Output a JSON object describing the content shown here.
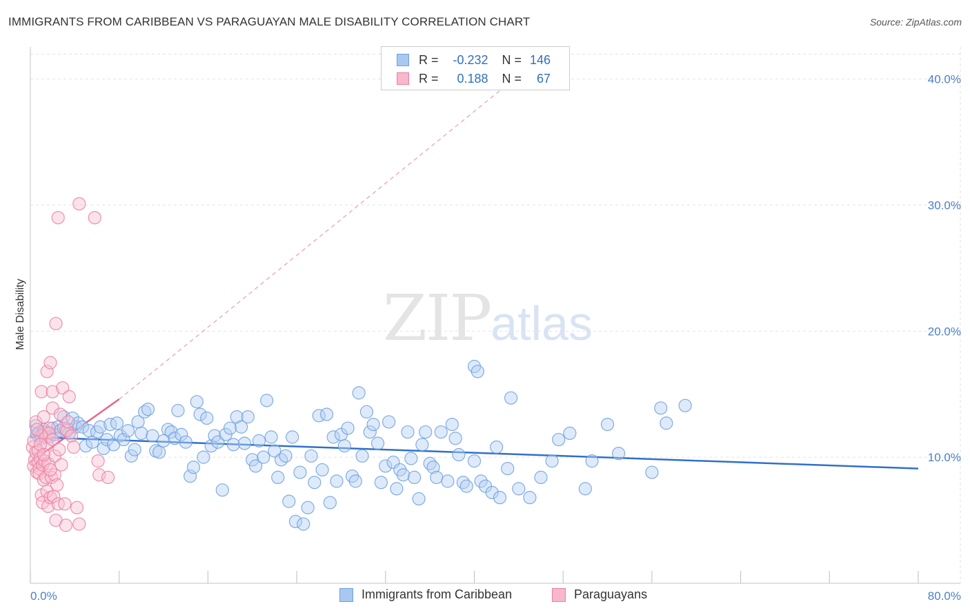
{
  "header": {
    "title": "IMMIGRANTS FROM CARIBBEAN VS PARAGUAYAN MALE DISABILITY CORRELATION CHART",
    "source": "Source: ZipAtlas.com"
  },
  "watermark": {
    "zip": "ZIP",
    "atlas": "atlas"
  },
  "legend": {
    "rows": [
      {
        "r_label": "R =",
        "r_value": "-0.232",
        "n_label": "N =",
        "n_value": "146",
        "color": "#a9c8ef",
        "border": "#6a9fe0"
      },
      {
        "r_label": "R =",
        "r_value": "0.188",
        "n_label": "N =",
        "n_value": "67",
        "color": "#f7b8cc",
        "border": "#ec7ea0"
      }
    ]
  },
  "bottom_legend": {
    "series1": "Immigrants from Caribbean",
    "series2": "Paraguayans"
  },
  "chart_data": {
    "type": "scatter",
    "title": "IMMIGRANTS FROM CARIBBEAN VS PARAGUAYAN MALE DISABILITY CORRELATION CHART",
    "xlabel": "",
    "ylabel": "Male Disability",
    "xlim": [
      0,
      80
    ],
    "ylim": [
      0,
      42
    ],
    "x_tick_labels": [
      "0.0%",
      "80.0%"
    ],
    "y_ticks": [
      10,
      20,
      30,
      40
    ],
    "y_tick_labels": [
      "10.0%",
      "20.0%",
      "30.0%",
      "40.0%"
    ],
    "series": [
      {
        "name": "Immigrants from Caribbean",
        "color": "#6a9fe0",
        "fill": "#b5d0f2",
        "trend": {
          "x": [
            0,
            80
          ],
          "y": [
            11.6,
            9.1
          ],
          "style": "solid",
          "color": "#2f6fcc"
        },
        "points": [
          [
            0.5,
            12.5
          ],
          [
            0.6,
            11.8
          ],
          [
            0.8,
            12.0
          ],
          [
            1.0,
            11.5
          ],
          [
            1.2,
            12.2
          ],
          [
            1.4,
            11.9
          ],
          [
            1.7,
            11.6
          ],
          [
            2.0,
            12.3
          ],
          [
            2.2,
            11.8
          ],
          [
            2.5,
            12.4
          ],
          [
            2.7,
            12.1
          ],
          [
            3.0,
            13.2
          ],
          [
            3.2,
            12.2
          ],
          [
            3.5,
            11.9
          ],
          [
            3.8,
            13.1
          ],
          [
            4.1,
            12.4
          ],
          [
            4.3,
            12.7
          ],
          [
            4.7,
            12.4
          ],
          [
            5.0,
            10.9
          ],
          [
            5.3,
            12.1
          ],
          [
            5.6,
            11.2
          ],
          [
            6.0,
            12.0
          ],
          [
            6.3,
            12.4
          ],
          [
            6.6,
            10.7
          ],
          [
            6.9,
            11.4
          ],
          [
            7.2,
            12.6
          ],
          [
            7.5,
            11.0
          ],
          [
            7.8,
            12.7
          ],
          [
            8.1,
            11.7
          ],
          [
            8.4,
            11.4
          ],
          [
            8.8,
            12.1
          ],
          [
            9.1,
            10.1
          ],
          [
            9.4,
            10.6
          ],
          [
            9.7,
            12.8
          ],
          [
            10.0,
            11.9
          ],
          [
            10.3,
            13.6
          ],
          [
            10.6,
            13.8
          ],
          [
            11.0,
            11.7
          ],
          [
            11.3,
            10.5
          ],
          [
            11.6,
            10.4
          ],
          [
            12.0,
            11.3
          ],
          [
            12.4,
            12.2
          ],
          [
            12.7,
            12.0
          ],
          [
            13.0,
            11.5
          ],
          [
            13.3,
            13.7
          ],
          [
            13.6,
            11.8
          ],
          [
            14.0,
            11.2
          ],
          [
            14.4,
            8.5
          ],
          [
            14.7,
            9.2
          ],
          [
            15.0,
            14.4
          ],
          [
            15.3,
            13.4
          ],
          [
            15.6,
            10.0
          ],
          [
            15.9,
            13.1
          ],
          [
            16.3,
            10.9
          ],
          [
            16.6,
            11.7
          ],
          [
            16.9,
            11.2
          ],
          [
            17.3,
            7.4
          ],
          [
            17.6,
            11.8
          ],
          [
            18.0,
            12.3
          ],
          [
            18.3,
            11.0
          ],
          [
            18.6,
            13.2
          ],
          [
            19.0,
            12.4
          ],
          [
            19.3,
            11.1
          ],
          [
            19.6,
            13.2
          ],
          [
            20.0,
            9.8
          ],
          [
            20.3,
            9.3
          ],
          [
            20.6,
            11.3
          ],
          [
            21.0,
            10.0
          ],
          [
            21.3,
            14.5
          ],
          [
            21.7,
            11.6
          ],
          [
            22.0,
            10.5
          ],
          [
            22.3,
            8.4
          ],
          [
            22.6,
            9.8
          ],
          [
            23.0,
            10.1
          ],
          [
            23.3,
            6.5
          ],
          [
            23.6,
            11.6
          ],
          [
            23.9,
            4.9
          ],
          [
            24.3,
            8.8
          ],
          [
            24.6,
            4.7
          ],
          [
            25.0,
            6.0
          ],
          [
            25.3,
            10.1
          ],
          [
            25.6,
            8.0
          ],
          [
            26.0,
            13.3
          ],
          [
            26.3,
            9.0
          ],
          [
            26.7,
            13.4
          ],
          [
            27.0,
            6.4
          ],
          [
            27.3,
            11.6
          ],
          [
            27.6,
            8.1
          ],
          [
            28.0,
            11.8
          ],
          [
            28.3,
            10.9
          ],
          [
            28.6,
            12.3
          ],
          [
            29.0,
            8.5
          ],
          [
            29.3,
            8.1
          ],
          [
            29.6,
            15.1
          ],
          [
            29.9,
            10.1
          ],
          [
            30.3,
            13.6
          ],
          [
            30.6,
            12.0
          ],
          [
            30.9,
            12.6
          ],
          [
            31.3,
            11.1
          ],
          [
            31.6,
            8.0
          ],
          [
            32.0,
            9.3
          ],
          [
            32.3,
            12.8
          ],
          [
            32.7,
            9.6
          ],
          [
            33.0,
            7.5
          ],
          [
            33.3,
            9.0
          ],
          [
            33.6,
            8.6
          ],
          [
            34.0,
            12.0
          ],
          [
            34.3,
            9.9
          ],
          [
            34.6,
            8.4
          ],
          [
            35.0,
            6.7
          ],
          [
            35.3,
            11.0
          ],
          [
            35.6,
            12.0
          ],
          [
            36.0,
            9.5
          ],
          [
            36.3,
            9.2
          ],
          [
            36.6,
            8.4
          ],
          [
            37.0,
            12.0
          ],
          [
            37.6,
            8.1
          ],
          [
            38.0,
            12.6
          ],
          [
            38.3,
            11.5
          ],
          [
            38.6,
            10.2
          ],
          [
            39.0,
            8.0
          ],
          [
            39.3,
            7.7
          ],
          [
            40.0,
            9.7
          ],
          [
            40.6,
            8.1
          ],
          [
            41.0,
            7.7
          ],
          [
            41.6,
            7.2
          ],
          [
            42.0,
            10.8
          ],
          [
            42.3,
            6.8
          ],
          [
            43.0,
            9.1
          ],
          [
            43.3,
            14.7
          ],
          [
            44.0,
            7.5
          ],
          [
            45.0,
            6.8
          ],
          [
            46.0,
            8.4
          ],
          [
            47.0,
            9.7
          ],
          [
            47.6,
            11.4
          ],
          [
            48.6,
            11.9
          ],
          [
            50.0,
            7.5
          ],
          [
            50.6,
            9.7
          ],
          [
            52.0,
            12.6
          ],
          [
            53.0,
            10.3
          ],
          [
            56.0,
            8.8
          ],
          [
            56.8,
            13.9
          ],
          [
            57.3,
            12.7
          ],
          [
            59.0,
            14.1
          ],
          [
            40.0,
            17.2
          ],
          [
            40.3,
            16.8
          ]
        ]
      },
      {
        "name": "Paraguayans",
        "color": "#ec7ea0",
        "fill": "#f7c2d2",
        "trend": {
          "x": [
            0,
            8
          ],
          "y": [
            9.6,
            14.6
          ],
          "style": "solid",
          "color": "#e8628e"
        },
        "trend_extension": {
          "x": [
            8,
            45
          ],
          "y": [
            14.6,
            41.0
          ],
          "style": "dashed",
          "color": "#ec9ab5"
        },
        "points": [
          [
            0.2,
            10.8
          ],
          [
            0.3,
            9.3
          ],
          [
            0.4,
            9.8
          ],
          [
            0.5,
            12.8
          ],
          [
            0.5,
            10.4
          ],
          [
            0.6,
            8.8
          ],
          [
            0.7,
            10.5
          ],
          [
            0.7,
            9.6
          ],
          [
            0.8,
            9.1
          ],
          [
            0.8,
            8.7
          ],
          [
            0.9,
            9.9
          ],
          [
            1.0,
            15.2
          ],
          [
            1.0,
            7.0
          ],
          [
            1.1,
            6.4
          ],
          [
            1.1,
            9.4
          ],
          [
            1.2,
            8.2
          ],
          [
            1.2,
            13.2
          ],
          [
            1.3,
            9.7
          ],
          [
            1.3,
            12.0
          ],
          [
            1.4,
            11.6
          ],
          [
            1.4,
            8.4
          ],
          [
            1.5,
            16.8
          ],
          [
            1.5,
            7.3
          ],
          [
            1.6,
            9.5
          ],
          [
            1.6,
            6.1
          ],
          [
            1.7,
            12.3
          ],
          [
            1.7,
            11.9
          ],
          [
            1.8,
            17.5
          ],
          [
            1.8,
            6.8
          ],
          [
            1.9,
            8.4
          ],
          [
            2.0,
            15.2
          ],
          [
            2.0,
            13.9
          ],
          [
            2.1,
            6.9
          ],
          [
            2.2,
            10.1
          ],
          [
            2.2,
            8.6
          ],
          [
            2.3,
            20.6
          ],
          [
            2.3,
            5.0
          ],
          [
            2.4,
            7.8
          ],
          [
            2.5,
            29.0
          ],
          [
            2.5,
            6.3
          ],
          [
            2.7,
            13.4
          ],
          [
            2.8,
            9.4
          ],
          [
            2.9,
            15.5
          ],
          [
            3.0,
            12.3
          ],
          [
            3.1,
            6.3
          ],
          [
            3.2,
            4.6
          ],
          [
            3.3,
            12.1
          ],
          [
            3.5,
            14.8
          ],
          [
            3.7,
            11.7
          ],
          [
            3.9,
            10.8
          ],
          [
            4.2,
            6.0
          ],
          [
            4.4,
            4.7
          ],
          [
            4.4,
            30.1
          ],
          [
            5.8,
            29.0
          ],
          [
            6.1,
            9.7
          ],
          [
            6.2,
            8.6
          ],
          [
            7.0,
            8.4
          ],
          [
            1.0,
            11.7
          ],
          [
            1.5,
            11.0
          ],
          [
            2.0,
            11.4
          ],
          [
            2.6,
            10.6
          ],
          [
            0.3,
            11.3
          ],
          [
            0.6,
            12.2
          ],
          [
            0.9,
            11.0
          ],
          [
            1.2,
            10.2
          ],
          [
            1.8,
            9.0
          ],
          [
            3.4,
            12.8
          ]
        ]
      }
    ]
  }
}
